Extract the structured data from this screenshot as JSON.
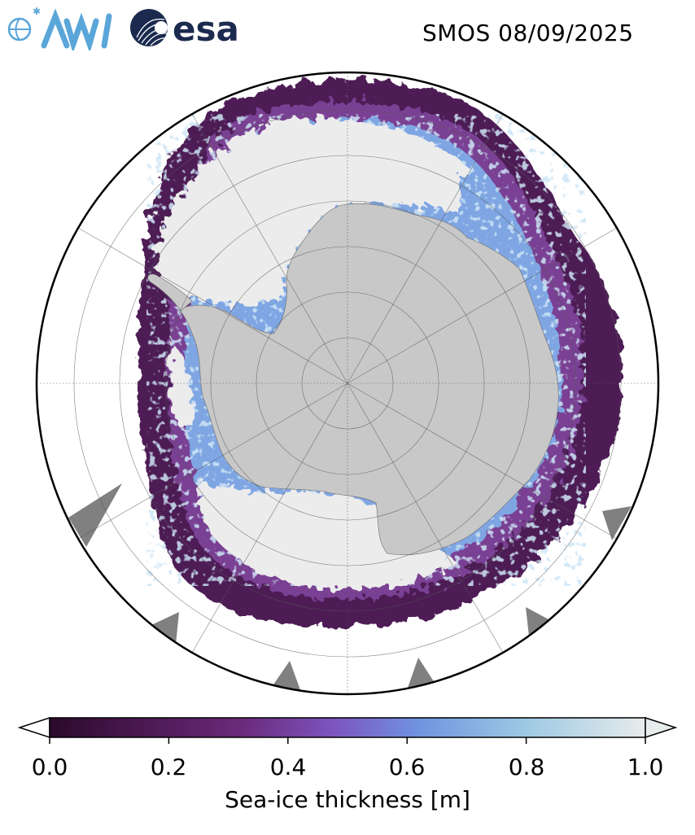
{
  "header": {
    "title": "SMOS 08/09/2025",
    "awi_logo_text": "AWI",
    "esa_logo_text": "esa"
  },
  "map": {
    "projection": "south-polar-stereographic",
    "land_color": "#c8c8c8",
    "ocean_color": "#ffffff",
    "no_data_color": "#808080",
    "thick_ice_color": "#ececec"
  },
  "colorbar": {
    "label": "Sea-ice thickness [m]",
    "ticks": [
      "0.0",
      "0.2",
      "0.4",
      "0.6",
      "0.8",
      "1.0"
    ],
    "min": 0.0,
    "max": 1.0,
    "extend": "both",
    "colors": [
      "#2b0a2b",
      "#4a1850",
      "#6a2a7a",
      "#7d55c0",
      "#6f94e0",
      "#9ec9e3",
      "#e7ecec"
    ]
  }
}
